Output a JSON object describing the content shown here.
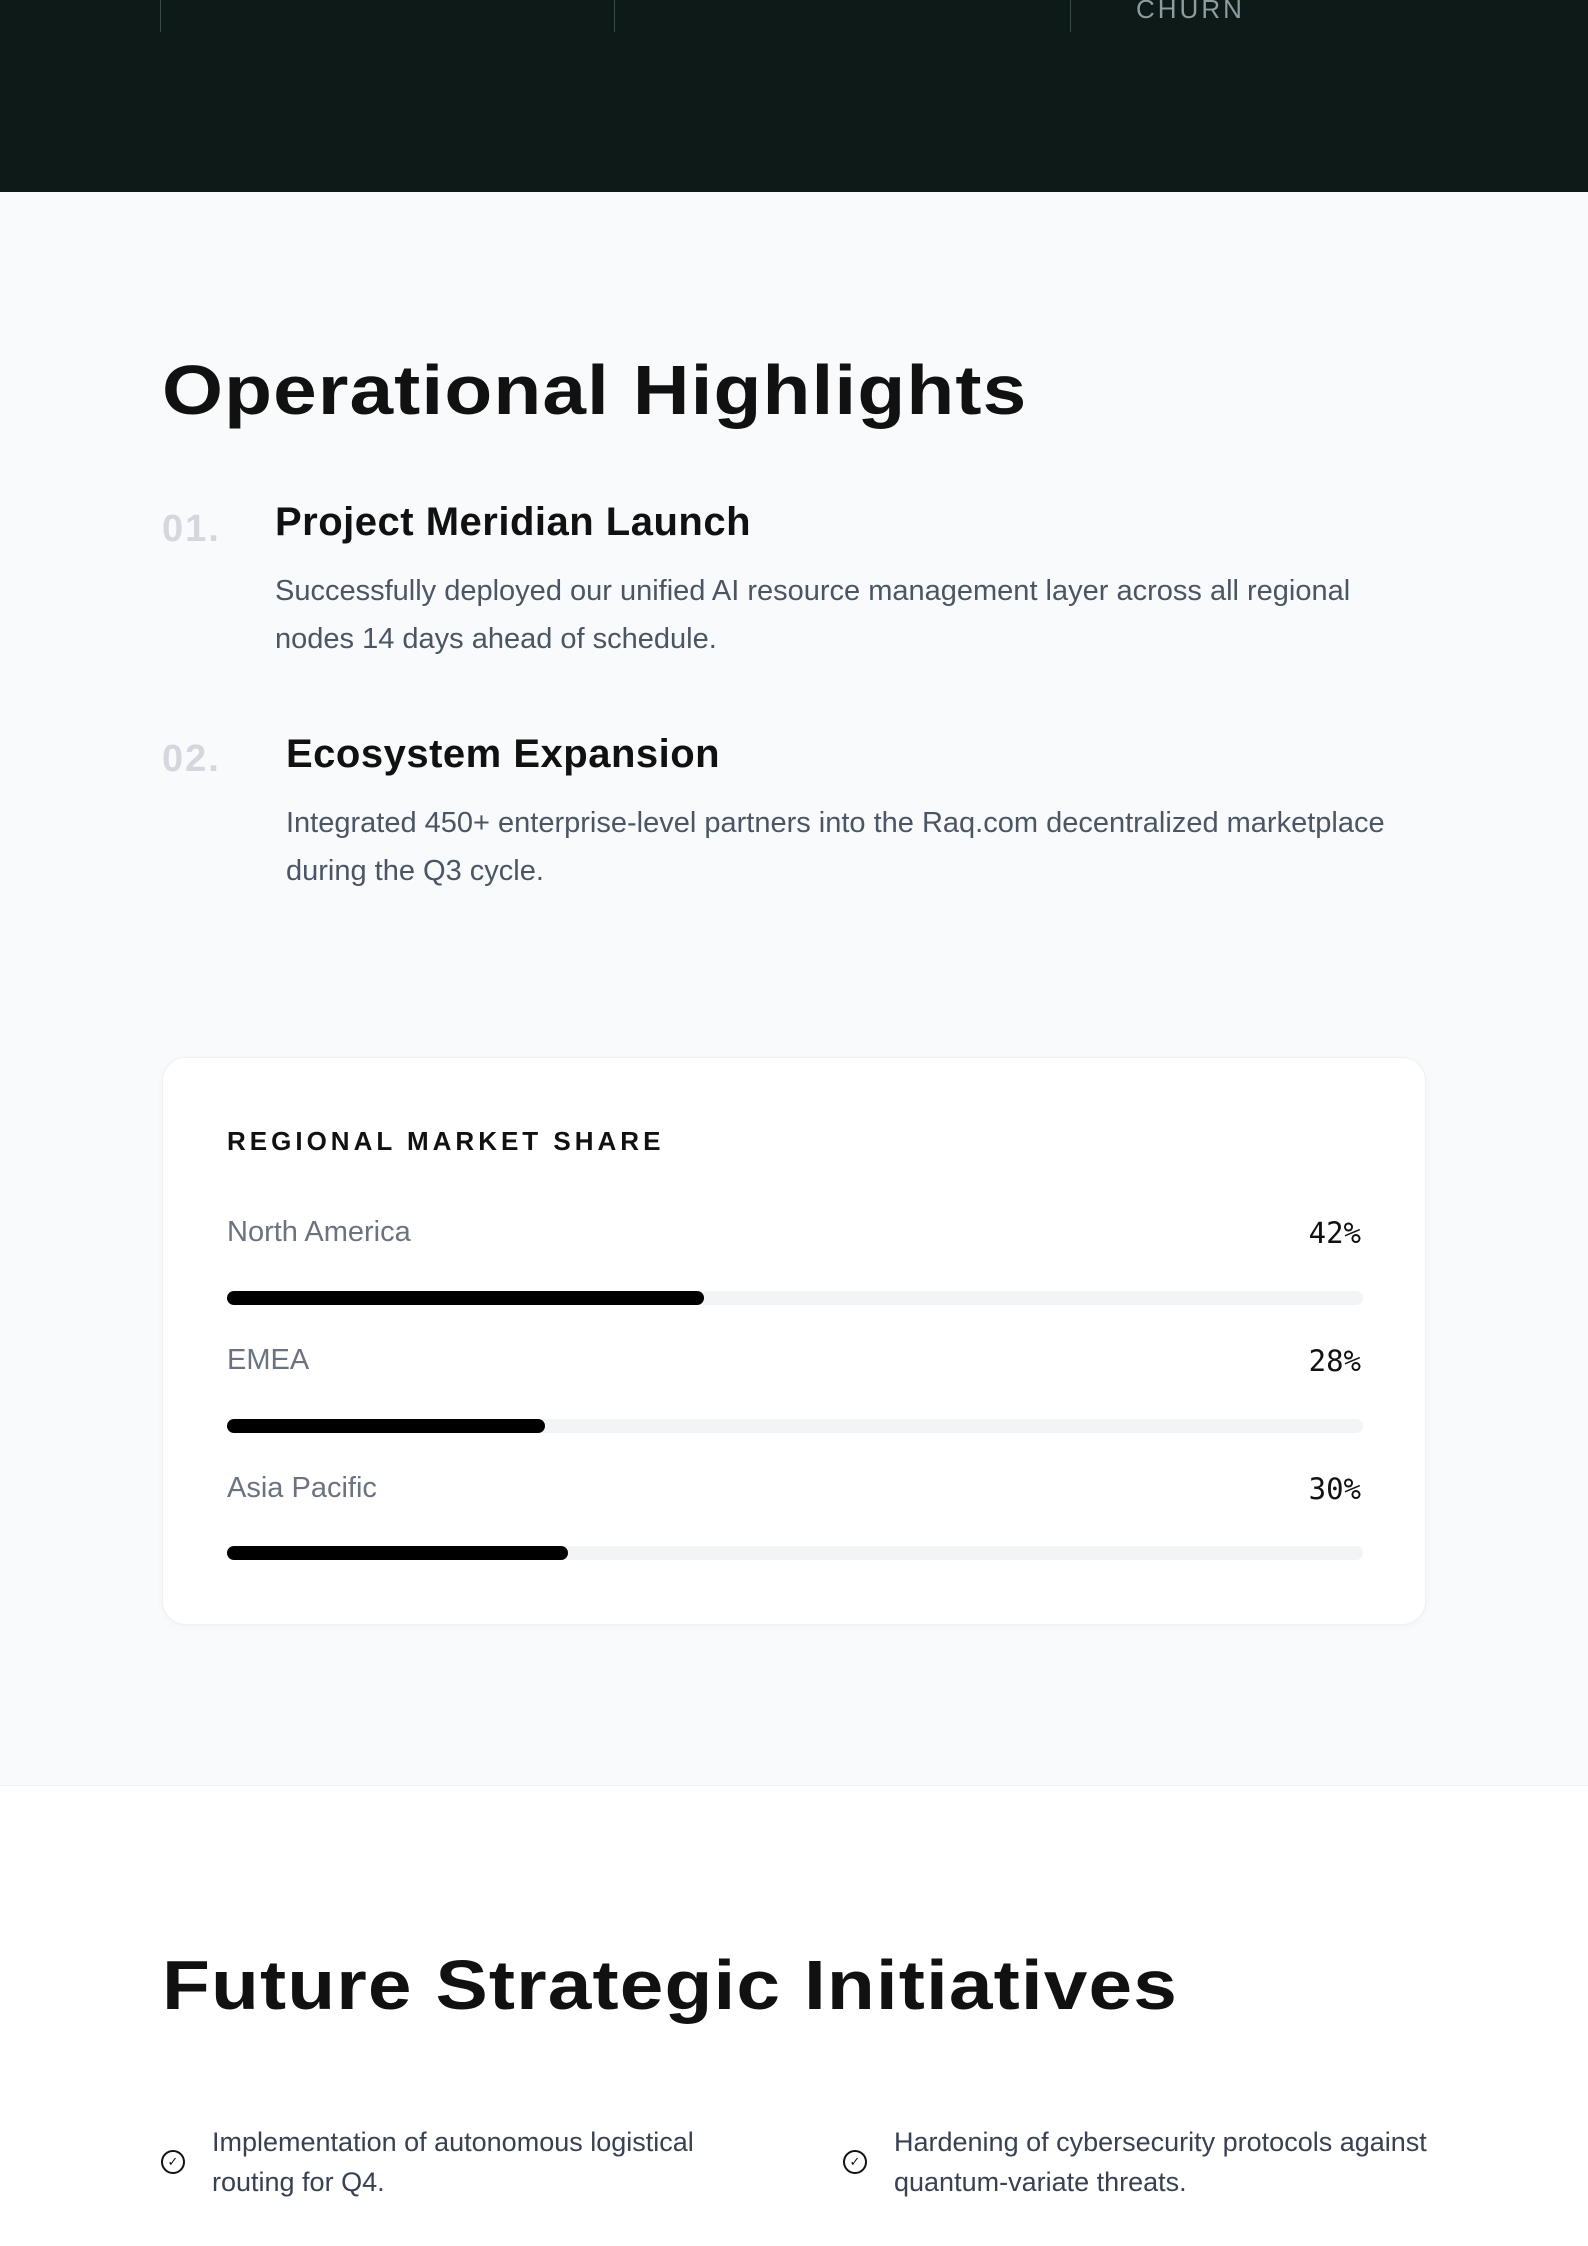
{
  "hero": {
    "stat_label": "CHURN"
  },
  "highlights": {
    "title": "Operational Highlights",
    "items": [
      {
        "number": "01.",
        "title": "Project Meridian Launch",
        "description": "Successfully deployed our unified AI resource management layer across all regional nodes 14 days ahead of schedule."
      },
      {
        "number": "02.",
        "title": "Ecosystem Expansion",
        "description": "Integrated 450+ enterprise-level partners into the Raq.com decentralized marketplace during the Q3 cycle."
      }
    ]
  },
  "market_share": {
    "title": "REGIONAL MARKET SHARE",
    "bar_color": "#000000",
    "rows": [
      {
        "label": "North America",
        "value_label": "42%",
        "percent": 42
      },
      {
        "label": "EMEA",
        "value_label": "28%",
        "percent": 28
      },
      {
        "label": "Asia Pacific",
        "value_label": "30%",
        "percent": 30
      }
    ]
  },
  "initiatives": {
    "title": "Future Strategic Initiatives",
    "icon": "check-circle-icon",
    "items": [
      "Implementation of autonomous logistical routing for Q4.",
      "Hardening of cybersecurity protocols against quantum-variate threats."
    ]
  }
}
